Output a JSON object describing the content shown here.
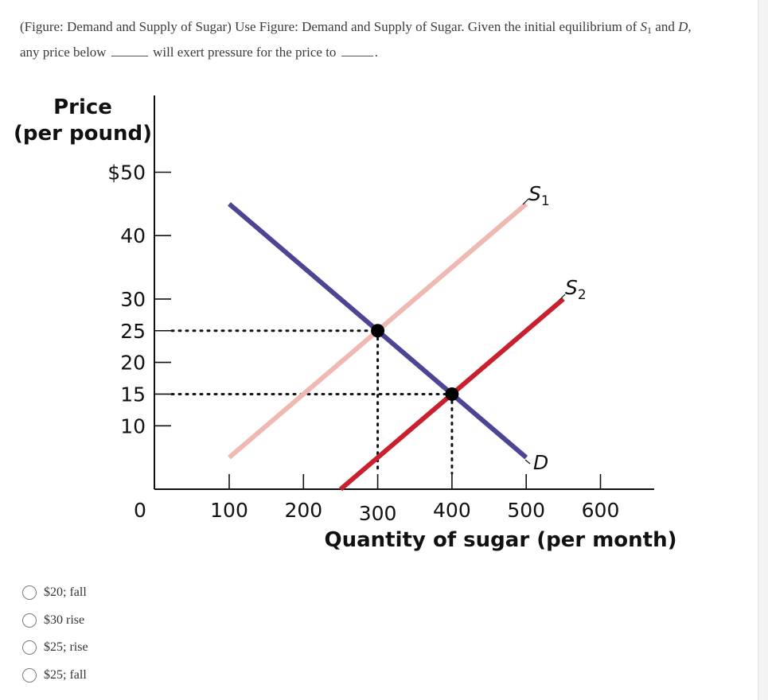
{
  "question": {
    "part1": "(Figure: Demand and Supply of Sugar) Use Figure: Demand and Supply of Sugar. Given the initial equilibrium of ",
    "s_letter": "S",
    "s_sub": "1",
    "part2": " and ",
    "d_letter": "D",
    "part3": ",",
    "part4": "any price below",
    "part5": "will exert pressure for the price to",
    "part6": "."
  },
  "chart_data": {
    "type": "line",
    "ylabel_line1": "Price",
    "ylabel_line2": "(per pound)",
    "xlabel": "Quantity of sugar (per month)",
    "origin_label": "0",
    "y_ticks": [
      {
        "value": 50,
        "label": "$50"
      },
      {
        "value": 40,
        "label": "40"
      },
      {
        "value": 30,
        "label": "30"
      },
      {
        "value": 25,
        "label": "25"
      },
      {
        "value": 20,
        "label": "20"
      },
      {
        "value": 15,
        "label": "15"
      },
      {
        "value": 10,
        "label": "10"
      }
    ],
    "x_ticks": [
      {
        "value": 100,
        "label": "100"
      },
      {
        "value": 200,
        "label": "200"
      },
      {
        "value": 300,
        "label": "300"
      },
      {
        "value": 400,
        "label": "400"
      },
      {
        "value": 500,
        "label": "500"
      },
      {
        "value": 600,
        "label": "600"
      }
    ],
    "series": [
      {
        "name": "D",
        "label_letter": "D",
        "label_sub": "",
        "color": "#4b4593",
        "points": [
          {
            "x": 100,
            "y": 45
          },
          {
            "x": 500,
            "y": 5
          }
        ]
      },
      {
        "name": "S1",
        "label_letter": "S",
        "label_sub": "1",
        "color": "#efb8b0",
        "points": [
          {
            "x": 100,
            "y": 5
          },
          {
            "x": 500,
            "y": 45
          }
        ]
      },
      {
        "name": "S2",
        "label_letter": "S",
        "label_sub": "2",
        "color": "#c8202f",
        "points": [
          {
            "x": 250,
            "y": 0
          },
          {
            "x": 550,
            "y": 30
          }
        ]
      }
    ],
    "equilibria": [
      {
        "x": 300,
        "y": 25
      },
      {
        "x": 400,
        "y": 15
      }
    ]
  },
  "options": [
    {
      "label": "$20; fall"
    },
    {
      "label": "$30 rise"
    },
    {
      "label": "$25; rise"
    },
    {
      "label": "$25; fall"
    }
  ]
}
